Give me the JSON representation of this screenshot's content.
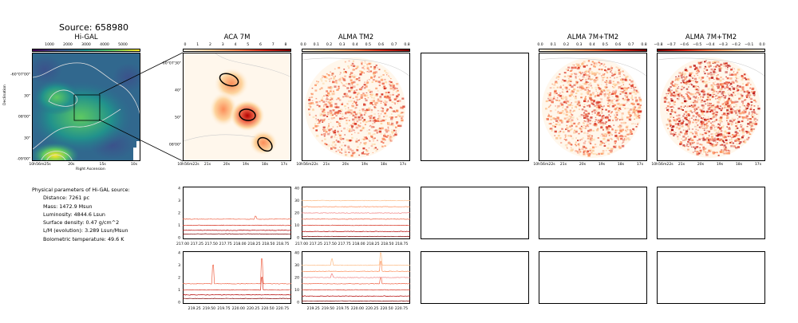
{
  "source_title": "Source: 658980",
  "panels": {
    "higal": {
      "title": "Hi-GAL",
      "cbar_ticks": [
        "1000",
        "2000",
        "3000",
        "4000",
        "5000"
      ],
      "xticks": [
        "10h56m25s",
        "20s",
        "15s",
        "10s"
      ],
      "yticks": [
        "-60°07'00\"",
        "30\"",
        "08'00\"",
        "30\"",
        "-09'00\""
      ],
      "xlabel": "Right Ascension",
      "ylabel": "Declination"
    },
    "aca": {
      "title": "ACA 7M",
      "cbar_ticks": [
        "0",
        "1",
        "2",
        "3",
        "4",
        "5",
        "6",
        "7",
        "8"
      ],
      "xticks": [
        "10h56m22s",
        "21s",
        "20s",
        "19s",
        "18s",
        "17s"
      ],
      "yticks": [
        "-60°07'30\"",
        "40\"",
        "50\"",
        "08'00\""
      ]
    },
    "tm2": {
      "title": "ALMA TM2",
      "cbar_ticks": [
        "0.0",
        "0.1",
        "0.2",
        "0.3",
        "0.4",
        "0.5",
        "0.6",
        "0.7",
        "0.8"
      ],
      "xticks": [
        "10h56m22s",
        "21s",
        "20s",
        "19s",
        "18s",
        "17s"
      ]
    },
    "tm2_7m_a": {
      "title": "ALMA 7M+TM2",
      "cbar_ticks": [
        "0.0",
        "0.1",
        "0.2",
        "0.3",
        "0.4",
        "0.5",
        "0.6",
        "0.7",
        "0.8"
      ],
      "xticks": [
        "10h56m22s",
        "21s",
        "20s",
        "19s",
        "18s",
        "17s"
      ]
    },
    "tm2_7m_b": {
      "title": "ALMA 7M+TM2",
      "cbar_ticks": [
        "−0.8",
        "−0.7",
        "−0.6",
        "−0.5",
        "−0.4",
        "−0.3",
        "−0.2",
        "−0.1",
        "0.0"
      ],
      "xticks": [
        "10h56m22s",
        "21s",
        "20s",
        "19s",
        "18s",
        "17s"
      ]
    }
  },
  "params": {
    "heading": "Physical parameters of Hi-GAL source:",
    "lines": [
      "Distance: 7261 pc",
      "Mass: 1472.9 Msun",
      "Luminosity: 4844.6 Lsun",
      "Surface density: 0.47 g/cm^2",
      "L/M (evolution): 3.289 Lsun/Msun",
      "Bolometric temperature: 49.6 K"
    ]
  },
  "chart_data": [
    {
      "type": "line",
      "panel": "spectrum-aca-spw1",
      "x_range": [
        217.0,
        218.9
      ],
      "ylim": [
        0,
        4
      ],
      "xticks": [
        "217.00",
        "217.25",
        "217.50",
        "217.75",
        "218.00",
        "218.25",
        "218.50",
        "218.75"
      ],
      "yticks": [
        "0",
        "1",
        "2",
        "3",
        "4"
      ],
      "series": [
        {
          "offset": 0.3,
          "color": "#7f0000"
        },
        {
          "offset": 0.6,
          "color": "#b30000"
        },
        {
          "offset": 1.0,
          "color": "#d7301f"
        },
        {
          "offset": 1.5,
          "color": "#ef6548"
        }
      ],
      "peaks": [
        {
          "x": 218.28,
          "h": 0.25,
          "series": 3
        }
      ]
    },
    {
      "type": "line",
      "panel": "spectrum-tm2-spw1",
      "x_range": [
        217.0,
        218.9
      ],
      "ylim": [
        0,
        40
      ],
      "xticks": [
        "217.00",
        "217.25",
        "217.50",
        "217.75",
        "218.00",
        "218.25",
        "218.50",
        "218.75"
      ],
      "yticks": [
        "0",
        "10",
        "20",
        "30",
        "40"
      ],
      "series": [
        {
          "offset": 1,
          "color": "#7f0000"
        },
        {
          "offset": 5,
          "color": "#b30000"
        },
        {
          "offset": 10,
          "color": "#d7301f"
        },
        {
          "offset": 15,
          "color": "#ef6548"
        },
        {
          "offset": 20,
          "color": "#f08080"
        },
        {
          "offset": 25,
          "color": "#fc8d59"
        },
        {
          "offset": 30,
          "color": "#fdbb84"
        }
      ],
      "peaks": []
    },
    {
      "type": "line",
      "panel": "spectrum-aca-spw2",
      "x_range": [
        219.05,
        220.9
      ],
      "ylim": [
        0,
        4
      ],
      "xticks": [
        "219.25",
        "219.50",
        "219.75",
        "220.00",
        "220.25",
        "220.50",
        "220.75"
      ],
      "yticks": [
        "0",
        "1",
        "2",
        "3",
        "4"
      ],
      "series": [
        {
          "offset": 0.3,
          "color": "#7f0000"
        },
        {
          "offset": 0.6,
          "color": "#b30000"
        },
        {
          "offset": 1.0,
          "color": "#d7301f"
        },
        {
          "offset": 1.5,
          "color": "#ef6548"
        }
      ],
      "peaks": [
        {
          "x": 219.56,
          "h": 1.5,
          "series": 3
        },
        {
          "x": 220.4,
          "h": 2.0,
          "series": 3
        },
        {
          "x": 220.4,
          "h": 1.0,
          "series": 2
        }
      ]
    },
    {
      "type": "line",
      "panel": "spectrum-tm2-spw2",
      "x_range": [
        219.05,
        220.9
      ],
      "ylim": [
        0,
        40
      ],
      "xticks": [
        "219.25",
        "219.50",
        "219.75",
        "220.00",
        "220.25",
        "220.50",
        "220.75"
      ],
      "yticks": [
        "0",
        "10",
        "20",
        "30",
        "40"
      ],
      "series": [
        {
          "offset": 1,
          "color": "#7f0000"
        },
        {
          "offset": 5,
          "color": "#b30000"
        },
        {
          "offset": 10,
          "color": "#d7301f"
        },
        {
          "offset": 15,
          "color": "#ef6548"
        },
        {
          "offset": 20,
          "color": "#f08080"
        },
        {
          "offset": 25,
          "color": "#fc8d59"
        },
        {
          "offset": 30,
          "color": "#fdbb84"
        }
      ],
      "peaks": [
        {
          "x": 219.56,
          "h": 5,
          "series": 6
        },
        {
          "x": 219.56,
          "h": 3,
          "series": 4
        },
        {
          "x": 220.4,
          "h": 10,
          "series": 6
        },
        {
          "x": 220.4,
          "h": 8,
          "series": 5
        },
        {
          "x": 220.4,
          "h": 5,
          "series": 3
        }
      ]
    }
  ]
}
